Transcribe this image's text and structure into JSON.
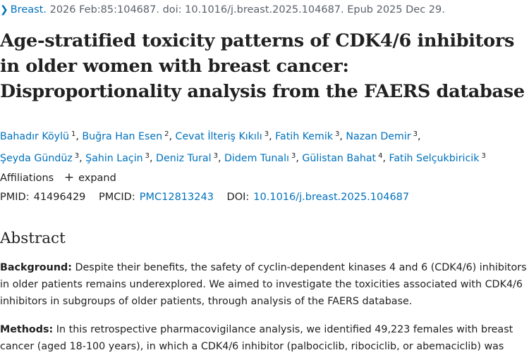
{
  "citation": {
    "journal": "Breast.",
    "rest": "2026 Feb:85:104687. doi: 10.1016/j.breast.2025.104687. Epub 2025 Dec 29."
  },
  "title": "Age-stratified toxicity patterns of CDK4/6 inhibitors in older women with breast cancer: Disproportionality analysis from the FAERS database",
  "authors": [
    {
      "name": "Bahadır Köylü",
      "sup": "1"
    },
    {
      "name": "Buğra Han Esen",
      "sup": "2"
    },
    {
      "name": "Cevat İlteriş Kıkılı",
      "sup": "3"
    },
    {
      "name": "Fatih Kemik",
      "sup": "3"
    },
    {
      "name": "Nazan Demir",
      "sup": "3"
    },
    {
      "name": "Şeyda Gündüz",
      "sup": "3"
    },
    {
      "name": "Şahin Laçin",
      "sup": "3"
    },
    {
      "name": "Deniz Tural",
      "sup": "3"
    },
    {
      "name": "Didem Tunalı",
      "sup": "3"
    },
    {
      "name": "Gülistan Bahat",
      "sup": "4"
    },
    {
      "name": "Fatih Selçukbiricik",
      "sup": "3"
    }
  ],
  "affiliations": {
    "label": "Affiliations",
    "expand": "expand"
  },
  "ids": {
    "pmid_label": "PMID:",
    "pmid": "41496429",
    "pmcid_label": "PMCID:",
    "pmcid": "PMC12813243",
    "doi_label": "DOI:",
    "doi": "10.1016/j.breast.2025.104687"
  },
  "abstract": {
    "heading": "Abstract",
    "background_label": "Background:",
    "background_text": " Despite their benefits, the safety of cyclin-dependent kinases 4 and 6 (CDK4/6) inhibitors in older patients remains underexplored. We aimed to investigate the toxicities associated with CDK4/6 inhibitors in subgroups of older patients, through analysis of the FAERS database.",
    "methods_label": "Methods:",
    "methods_text": " In this retrospective pharmacovigilance analysis, we identified 49,223 females with breast cancer (aged 18-100 years), in which a CDK4/6 inhibitor (palbociclib, ribociclib, or abemaciclib) was"
  }
}
